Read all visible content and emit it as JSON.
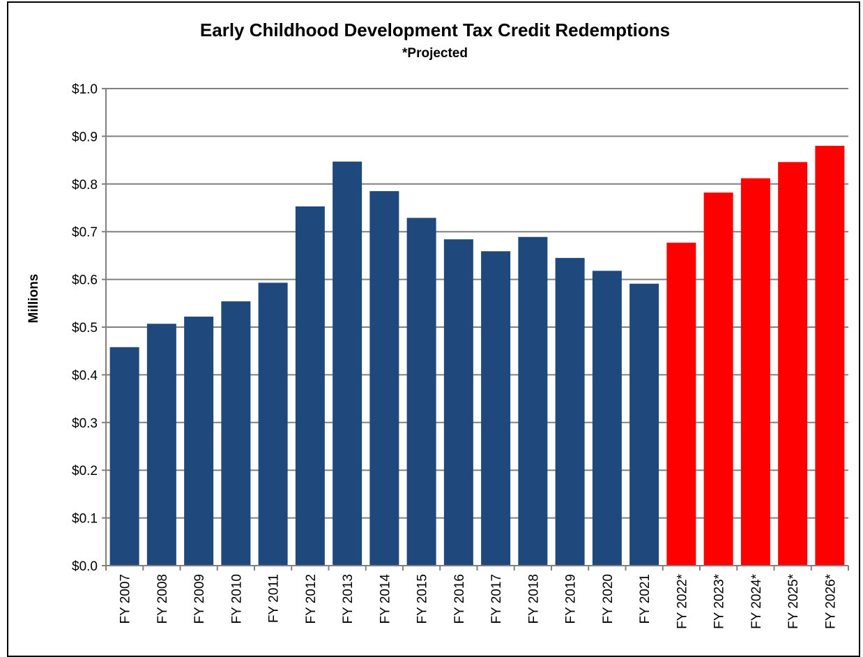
{
  "chart_data": {
    "type": "bar",
    "title": "Early Childhood Development Tax Credit Redemptions",
    "subtitle": "*Projected",
    "ylabel": "Millions",
    "xlabel": "",
    "ylim": [
      0,
      1.0
    ],
    "yticks": [
      0.0,
      0.1,
      0.2,
      0.3,
      0.4,
      0.5,
      0.6,
      0.7,
      0.8,
      0.9,
      1.0
    ],
    "ytick_labels": [
      "$0.0",
      "$0.1",
      "$0.2",
      "$0.3",
      "$0.4",
      "$0.5",
      "$0.6",
      "$0.7",
      "$0.8",
      "$0.9",
      "$1.0"
    ],
    "grid": true,
    "legend": "none",
    "categories": [
      "FY 2007",
      "FY 2008",
      "FY 2009",
      "FY 2010",
      "FY 2011",
      "FY 2012",
      "FY 2013",
      "FY 2014",
      "FY 2015",
      "FY 2016",
      "FY 2017",
      "FY 2018",
      "FY 2019",
      "FY 2020",
      "FY 2021",
      "FY 2022*",
      "FY 2023*",
      "FY 2024*",
      "FY 2025*",
      "FY 2026*"
    ],
    "values": [
      0.458,
      0.507,
      0.522,
      0.554,
      0.593,
      0.753,
      0.847,
      0.785,
      0.729,
      0.684,
      0.659,
      0.689,
      0.645,
      0.618,
      0.591,
      0.677,
      0.782,
      0.812,
      0.846,
      0.88
    ],
    "projected": [
      false,
      false,
      false,
      false,
      false,
      false,
      false,
      false,
      false,
      false,
      false,
      false,
      false,
      false,
      false,
      true,
      true,
      true,
      true,
      true
    ],
    "colors": {
      "actual": "#1f497d",
      "projected": "#ff0000",
      "grid": "#808080",
      "axis": "#808080"
    }
  }
}
